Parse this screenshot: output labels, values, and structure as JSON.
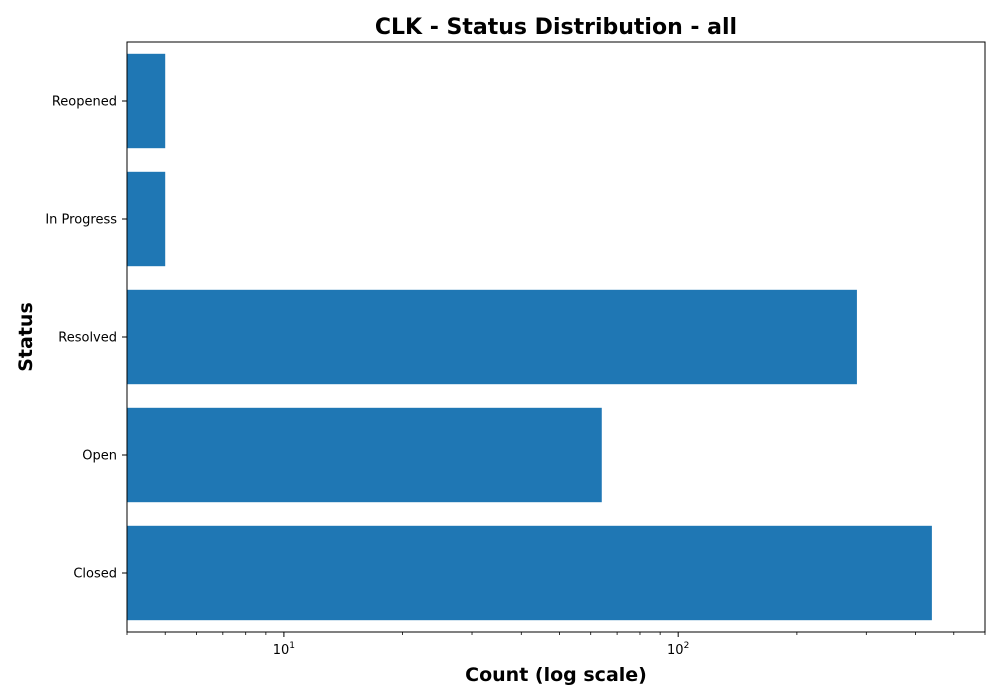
{
  "chart_data": {
    "type": "bar",
    "orientation": "horizontal",
    "title": "CLK - Status Distribution - all",
    "xlabel": "Count (log scale)",
    "ylabel": "Status",
    "x_scale": "log",
    "xlim": [
      4,
      600
    ],
    "x_major_ticks": [
      {
        "value": 10,
        "base": "10",
        "exp": "1"
      },
      {
        "value": 100,
        "base": "10",
        "exp": "2"
      }
    ],
    "categories": [
      "Closed",
      "Open",
      "Resolved",
      "In Progress",
      "Reopened"
    ],
    "values": [
      440,
      64,
      284,
      5,
      5
    ],
    "bar_color": "#1f77b4",
    "grid": false,
    "legend": "none"
  }
}
